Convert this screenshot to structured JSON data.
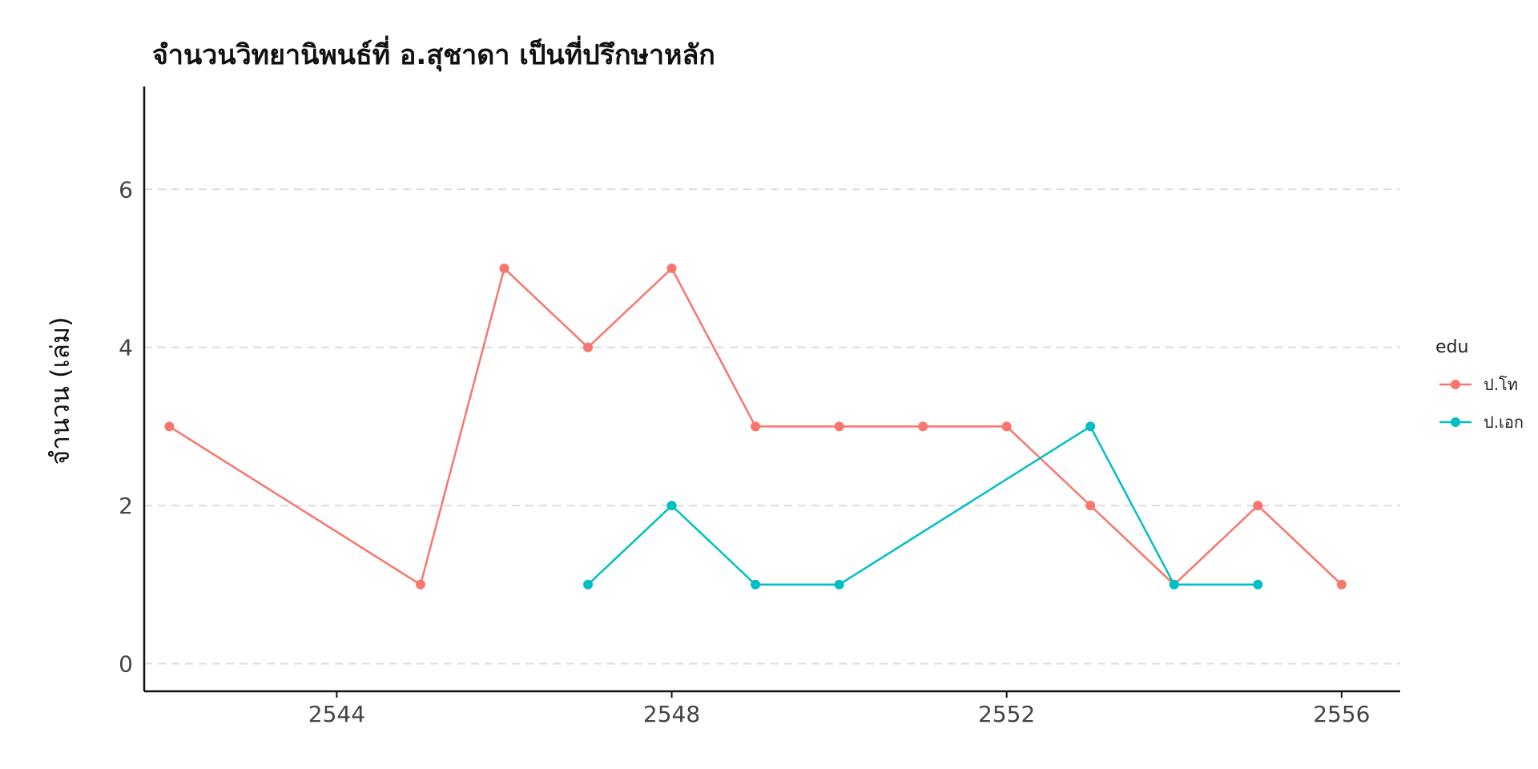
{
  "chart_data": {
    "type": "line",
    "title": "จำนวนวิทยานิพนธ์ที่ อ.สุชาดา เป็นที่ปรึกษาหลัก",
    "xlabel": "",
    "ylabel": "จำนวน (เล่ม)",
    "xlim": [
      2541.7,
      2556.7
    ],
    "ylim": [
      -0.35,
      7.3
    ],
    "x_ticks": [
      2544,
      2548,
      2552,
      2556
    ],
    "y_ticks": [
      0,
      2,
      4,
      6
    ],
    "grid": "horizontal-dashed",
    "legend_position": "right",
    "legend_title": "edu",
    "series": [
      {
        "name": "ป.โท",
        "color": "#F8766D",
        "x": [
          2542,
          2545,
          2546,
          2547,
          2548,
          2549,
          2550,
          2551,
          2552,
          2553,
          2554,
          2555,
          2556
        ],
        "y": [
          3,
          1,
          5,
          4,
          5,
          3,
          3,
          3,
          3,
          2,
          1,
          2,
          1
        ]
      },
      {
        "name": "ป.เอก",
        "color": "#00BFC4",
        "x": [
          2547,
          2548,
          2549,
          2550,
          2553,
          2554,
          2555
        ],
        "y": [
          1,
          2,
          1,
          1,
          3,
          1,
          1
        ]
      }
    ]
  }
}
